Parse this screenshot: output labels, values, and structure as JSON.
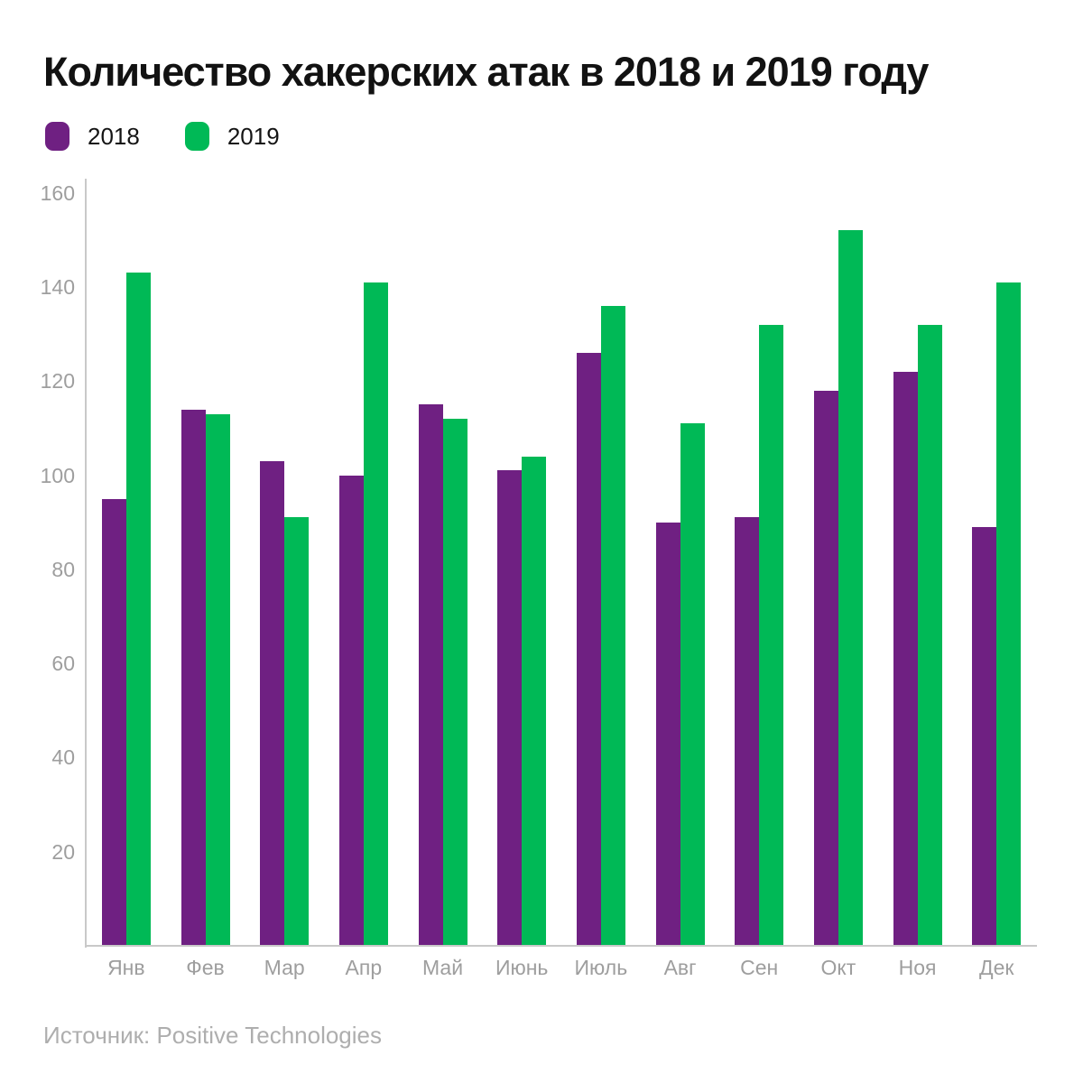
{
  "chart_data": {
    "type": "bar",
    "title": "Количество хакерских атак в 2018 и 2019 году",
    "categories": [
      "Янв",
      "Фев",
      "Мар",
      "Апр",
      "Май",
      "Июнь",
      "Июль",
      "Авг",
      "Сен",
      "Окт",
      "Ноя",
      "Дек"
    ],
    "series": [
      {
        "name": "2018",
        "color": "#6f2082",
        "values": [
          95,
          114,
          103,
          100,
          115,
          101,
          126,
          90,
          91,
          118,
          122,
          89
        ]
      },
      {
        "name": "2019",
        "color": "#00b956",
        "values": [
          143,
          113,
          91,
          141,
          112,
          104,
          136,
          111,
          132,
          152,
          132,
          141
        ]
      }
    ],
    "xlabel": "",
    "ylabel": "",
    "ylim": [
      0,
      163
    ],
    "yticks": [
      20,
      40,
      60,
      80,
      100,
      120,
      140,
      160
    ],
    "grid": false,
    "legend_position": "top-left",
    "axis_color": "#c9c9c9",
    "tick_label_color": "#9e9e9e",
    "source": "Источник: Positive Technologies"
  }
}
